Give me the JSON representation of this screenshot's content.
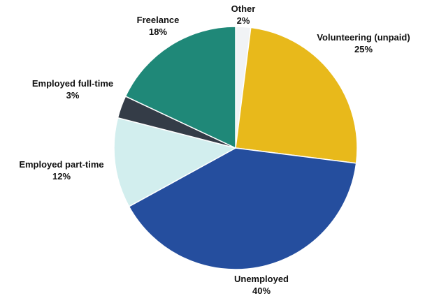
{
  "chart_data": {
    "type": "pie",
    "title": "",
    "start": "top",
    "direction": "clockwise",
    "slices": [
      {
        "label": "Other",
        "value": 2,
        "value_label": "2%",
        "color": "#f1f3f5"
      },
      {
        "label": "Volunteering (unpaid)",
        "value": 25,
        "value_label": "25%",
        "color": "#e8b91b"
      },
      {
        "label": "Unemployed",
        "value": 40,
        "value_label": "40%",
        "color": "#254e9e"
      },
      {
        "label": "Employed part-time",
        "value": 12,
        "value_label": "12%",
        "color": "#d2eeee"
      },
      {
        "label": "Employed full-time",
        "value": 3,
        "value_label": "3%",
        "color": "#343c47"
      },
      {
        "label": "Freelance",
        "value": 18,
        "value_label": "18%",
        "color": "#1f8878"
      }
    ]
  }
}
